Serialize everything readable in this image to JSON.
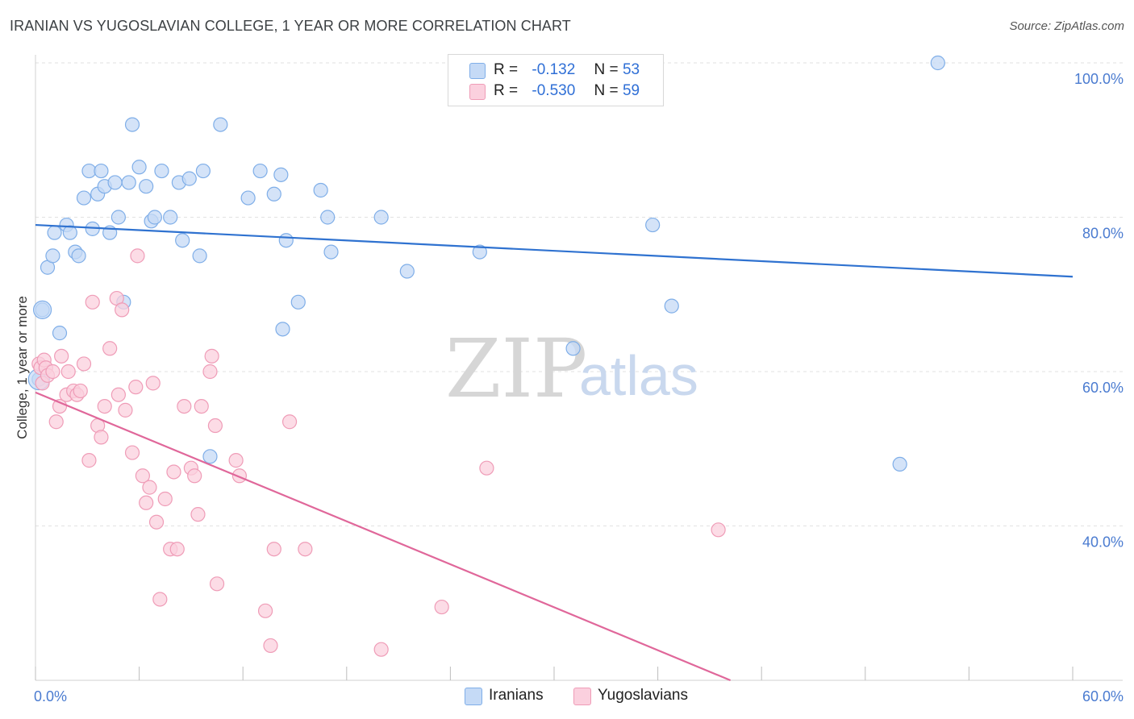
{
  "chart_data": {
    "type": "scatter",
    "title": "IRANIAN VS YUGOSLAVIAN COLLEGE, 1 YEAR OR MORE CORRELATION CHART",
    "source": "Source: ZipAtlas.com",
    "xlabel": "",
    "ylabel": "College, 1 year or more",
    "xlim": [
      0,
      60
    ],
    "ylim": [
      20,
      100
    ],
    "x_tick_labels": {
      "left": "0.0%",
      "right": "60.0%"
    },
    "y_ticks": [
      {
        "value": 100,
        "label": "100.0%"
      },
      {
        "value": 80,
        "label": "80.0%"
      },
      {
        "value": 60,
        "label": "60.0%"
      },
      {
        "value": 40,
        "label": "40.0%"
      }
    ],
    "watermark": {
      "zip": "ZIP",
      "atlas": "atlas"
    },
    "legend": [
      {
        "r_label": "R =",
        "r_value": "-0.132",
        "n_label": "N =",
        "n_value": "53"
      },
      {
        "r_label": "R =",
        "r_value": "-0.530",
        "n_label": "N =",
        "n_value": "59"
      }
    ],
    "series": [
      {
        "name": "Iranians",
        "color": "#7faee8",
        "fill": "#c5daf6",
        "trend_color": "#2f72d0",
        "trend": {
          "x": [
            0,
            60
          ],
          "y": [
            79.0,
            72.3
          ]
        },
        "points": [
          [
            0.2,
            59.0
          ],
          [
            0.4,
            68.0
          ],
          [
            0.7,
            73.5
          ],
          [
            1.0,
            75.0
          ],
          [
            1.1,
            78.0
          ],
          [
            1.4,
            65.0
          ],
          [
            1.8,
            79.0
          ],
          [
            2.0,
            78.0
          ],
          [
            2.3,
            75.5
          ],
          [
            2.5,
            75.0
          ],
          [
            2.8,
            82.5
          ],
          [
            3.1,
            86.0
          ],
          [
            3.3,
            78.5
          ],
          [
            3.6,
            83.0
          ],
          [
            3.8,
            86.0
          ],
          [
            4.0,
            84.0
          ],
          [
            4.3,
            78.0
          ],
          [
            4.6,
            84.5
          ],
          [
            4.8,
            80.0
          ],
          [
            5.1,
            69.0
          ],
          [
            5.4,
            84.5
          ],
          [
            5.6,
            92.0
          ],
          [
            6.0,
            86.5
          ],
          [
            6.4,
            84.0
          ],
          [
            6.7,
            79.5
          ],
          [
            6.9,
            80.0
          ],
          [
            7.3,
            86.0
          ],
          [
            7.8,
            80.0
          ],
          [
            8.3,
            84.5
          ],
          [
            8.5,
            77.0
          ],
          [
            8.9,
            85.0
          ],
          [
            9.5,
            75.0
          ],
          [
            9.7,
            86.0
          ],
          [
            10.1,
            49.0
          ],
          [
            10.7,
            92.0
          ],
          [
            12.3,
            82.5
          ],
          [
            13.0,
            86.0
          ],
          [
            13.8,
            83.0
          ],
          [
            14.2,
            85.5
          ],
          [
            14.3,
            65.5
          ],
          [
            14.5,
            77.0
          ],
          [
            15.2,
            69.0
          ],
          [
            16.5,
            83.5
          ],
          [
            16.9,
            80.0
          ],
          [
            17.1,
            75.5
          ],
          [
            20.0,
            80.0
          ],
          [
            21.5,
            73.0
          ],
          [
            25.7,
            75.5
          ],
          [
            31.1,
            63.0
          ],
          [
            35.7,
            79.0
          ],
          [
            36.8,
            68.5
          ],
          [
            50.0,
            48.0
          ],
          [
            52.2,
            100.0
          ]
        ]
      },
      {
        "name": "Yugoslavians",
        "color": "#ef9cb7",
        "fill": "#fbd0de",
        "trend_color": "#e0679a",
        "trend": {
          "x": [
            0,
            40.2
          ],
          "y": [
            57.3,
            20.0
          ]
        },
        "points": [
          [
            0.2,
            61.0
          ],
          [
            0.3,
            60.5
          ],
          [
            0.4,
            58.5
          ],
          [
            0.5,
            61.5
          ],
          [
            0.6,
            60.5
          ],
          [
            0.7,
            59.5
          ],
          [
            1.0,
            60.0
          ],
          [
            1.2,
            53.5
          ],
          [
            1.4,
            55.5
          ],
          [
            1.5,
            62.0
          ],
          [
            1.8,
            57.0
          ],
          [
            1.9,
            60.0
          ],
          [
            2.2,
            57.5
          ],
          [
            2.4,
            57.0
          ],
          [
            2.6,
            57.5
          ],
          [
            2.8,
            61.0
          ],
          [
            3.1,
            48.5
          ],
          [
            3.3,
            69.0
          ],
          [
            3.6,
            53.0
          ],
          [
            3.8,
            51.5
          ],
          [
            4.0,
            55.5
          ],
          [
            4.3,
            63.0
          ],
          [
            4.7,
            69.5
          ],
          [
            4.8,
            57.0
          ],
          [
            5.0,
            68.0
          ],
          [
            5.2,
            55.0
          ],
          [
            5.6,
            49.5
          ],
          [
            5.8,
            58.0
          ],
          [
            5.9,
            75.0
          ],
          [
            6.2,
            46.5
          ],
          [
            6.4,
            43.0
          ],
          [
            6.6,
            45.0
          ],
          [
            6.8,
            58.5
          ],
          [
            7.0,
            40.5
          ],
          [
            7.2,
            30.5
          ],
          [
            7.5,
            43.5
          ],
          [
            7.8,
            37.0
          ],
          [
            8.0,
            47.0
          ],
          [
            8.2,
            37.0
          ],
          [
            8.6,
            55.5
          ],
          [
            9.0,
            47.5
          ],
          [
            9.2,
            46.5
          ],
          [
            9.4,
            41.5
          ],
          [
            9.6,
            55.5
          ],
          [
            10.1,
            60.0
          ],
          [
            10.2,
            62.0
          ],
          [
            10.4,
            53.0
          ],
          [
            10.5,
            32.5
          ],
          [
            11.6,
            48.5
          ],
          [
            11.8,
            46.5
          ],
          [
            13.3,
            29.0
          ],
          [
            13.6,
            24.5
          ],
          [
            13.8,
            37.0
          ],
          [
            14.7,
            53.5
          ],
          [
            15.6,
            37.0
          ],
          [
            20.0,
            24.0
          ],
          [
            23.5,
            29.5
          ],
          [
            26.1,
            47.5
          ],
          [
            39.5,
            39.5
          ]
        ]
      }
    ]
  },
  "legend_bottom": [
    "Iranians",
    "Yugoslavians"
  ]
}
